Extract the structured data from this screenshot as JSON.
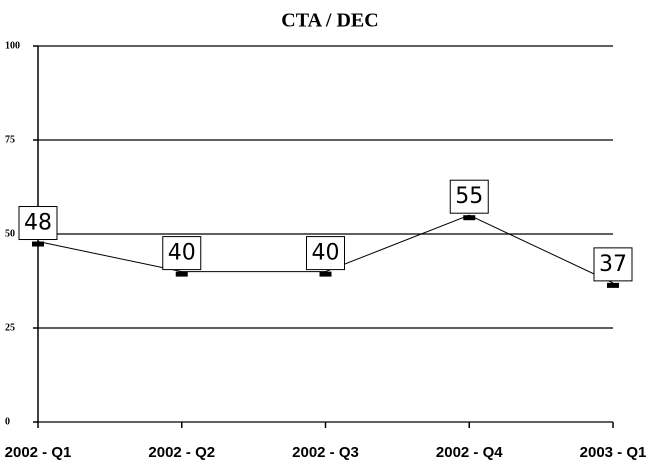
{
  "chart_data": {
    "type": "line",
    "title": "CTA / DEC",
    "categories": [
      "2002 - Q1",
      "2002 - Q2",
      "2002 - Q3",
      "2002 - Q4",
      "2003 - Q1"
    ],
    "values": [
      48,
      40,
      40,
      55,
      37
    ],
    "color": "#000000",
    "ylim": [
      0,
      100
    ],
    "yticks": [
      0,
      25,
      50,
      75,
      100
    ],
    "grid": true
  }
}
